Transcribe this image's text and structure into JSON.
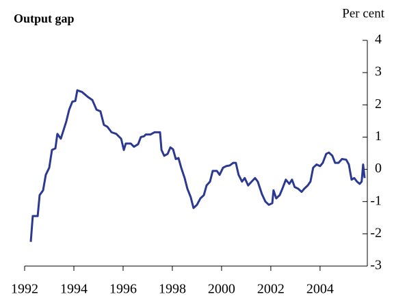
{
  "chart_data": {
    "type": "line",
    "title": "Output gap",
    "ylabel": "Per cent",
    "x": [
      1992.25,
      1992.33,
      1992.53,
      1992.61,
      1992.75,
      1992.86,
      1993.0,
      1993.11,
      1993.25,
      1993.33,
      1993.47,
      1993.69,
      1993.81,
      1993.94,
      1994.06,
      1994.14,
      1994.33,
      1994.56,
      1994.75,
      1994.92,
      1995.08,
      1995.22,
      1995.36,
      1995.53,
      1995.72,
      1995.92,
      1996.03,
      1996.11,
      1996.31,
      1996.44,
      1996.61,
      1996.72,
      1996.86,
      1996.92,
      1997.11,
      1997.28,
      1997.5,
      1997.56,
      1997.67,
      1997.81,
      1997.92,
      1998.03,
      1998.14,
      1998.25,
      1998.36,
      1998.5,
      1998.61,
      1998.75,
      1998.86,
      1999.0,
      1999.14,
      1999.28,
      1999.39,
      1999.53,
      1999.64,
      1999.81,
      1999.92,
      2000.06,
      2000.19,
      2000.33,
      2000.47,
      2000.58,
      2000.69,
      2000.83,
      2000.94,
      2001.08,
      2001.22,
      2001.36,
      2001.47,
      2001.64,
      2001.78,
      2001.92,
      2002.06,
      2002.11,
      2002.22,
      2002.36,
      2002.47,
      2002.61,
      2002.75,
      2002.86,
      2002.97,
      2003.11,
      2003.25,
      2003.36,
      2003.5,
      2003.61,
      2003.72,
      2003.86,
      2004.0,
      2004.11,
      2004.25,
      2004.36,
      2004.5,
      2004.61,
      2004.75,
      2004.89,
      2005.06,
      2005.17,
      2005.28,
      2005.39,
      2005.5,
      2005.61,
      2005.69,
      2005.75,
      2005.81
    ],
    "values": [
      -2.25,
      -1.45,
      -1.45,
      -0.8,
      -0.65,
      -0.17,
      0.05,
      0.6,
      0.65,
      1.1,
      0.95,
      1.48,
      1.85,
      2.1,
      2.12,
      2.45,
      2.4,
      2.25,
      2.15,
      1.85,
      1.8,
      1.38,
      1.32,
      1.15,
      1.1,
      0.95,
      0.6,
      0.8,
      0.8,
      0.7,
      0.78,
      1.0,
      1.03,
      1.08,
      1.08,
      1.15,
      1.15,
      0.6,
      0.42,
      0.48,
      0.68,
      0.62,
      0.32,
      0.35,
      0.05,
      -0.27,
      -0.6,
      -0.87,
      -1.2,
      -1.1,
      -0.9,
      -0.8,
      -0.5,
      -0.38,
      -0.05,
      -0.05,
      -0.17,
      0.05,
      0.1,
      0.12,
      0.2,
      0.2,
      -0.17,
      -0.38,
      -0.27,
      -0.5,
      -0.38,
      -0.27,
      -0.38,
      -0.77,
      -1.0,
      -1.1,
      -1.05,
      -0.65,
      -0.9,
      -0.8,
      -0.6,
      -0.32,
      -0.45,
      -0.32,
      -0.55,
      -0.6,
      -0.7,
      -0.6,
      -0.5,
      -0.38,
      0.05,
      0.15,
      0.1,
      0.2,
      0.48,
      0.52,
      0.42,
      0.2,
      0.2,
      0.32,
      0.3,
      0.15,
      -0.32,
      -0.27,
      -0.38,
      -0.45,
      -0.38,
      0.15,
      -0.27
    ],
    "color": "#2b3990",
    "xlim": [
      1992,
      2005.92
    ],
    "xticks": [
      1992,
      1994,
      1996,
      1998,
      2000,
      2002,
      2004
    ],
    "ylim": [
      -3,
      4
    ],
    "yticks": [
      -3,
      -2,
      -1,
      0,
      1,
      2,
      3,
      4
    ]
  }
}
